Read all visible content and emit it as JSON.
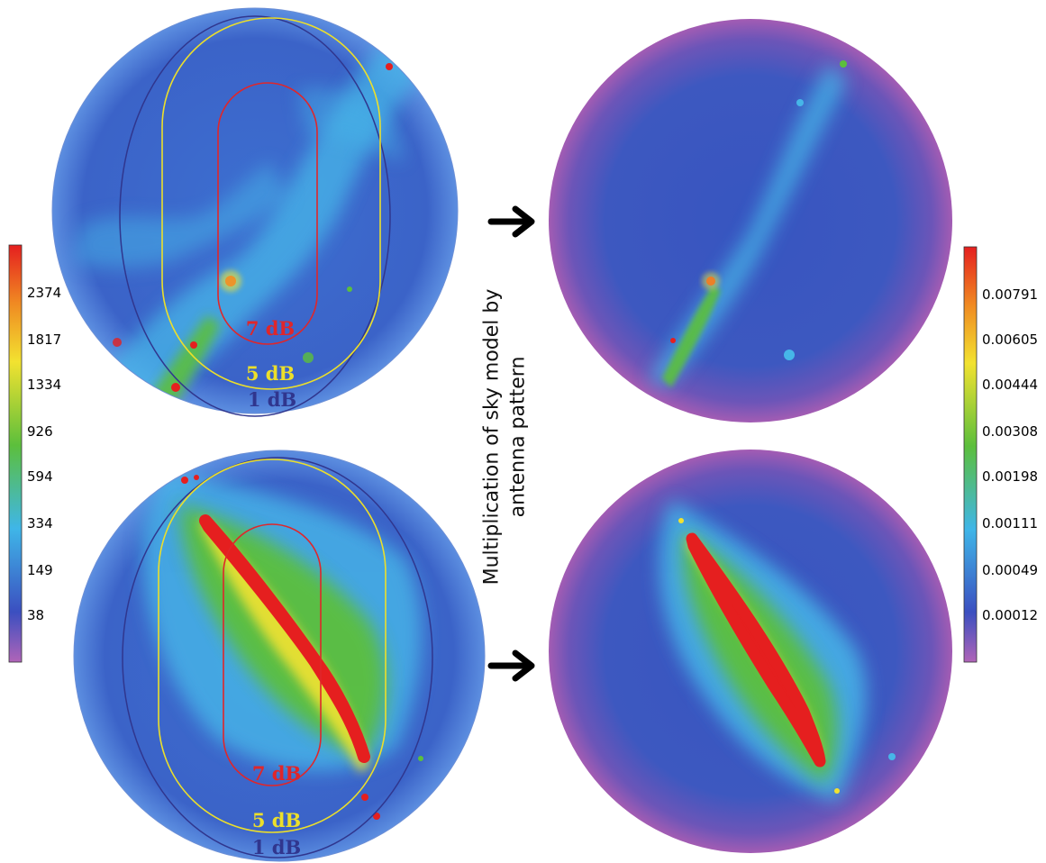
{
  "colors": {
    "sky_background": "#3a5fc4",
    "diffuse_emission": "#3fb6e8",
    "galactic_plane_mid": "#5cbf3c",
    "galactic_plane_core": "#ee2a22",
    "yellow_band": "#f2e230",
    "edge_magenta": "#a05bb3",
    "contour_7dB": "#e0262a",
    "contour_5dB": "#ecdf2a",
    "contour_1dB": "#30368e",
    "arrow": "#000000"
  },
  "left_colorbar": {
    "ticks": [
      "2374",
      "1817",
      "1334",
      "926",
      "594",
      "334",
      "149",
      "38"
    ]
  },
  "right_colorbar": {
    "ticks": [
      "0.00791",
      "0.00605",
      "0.00444",
      "0.00308",
      "0.00198",
      "0.00111",
      "0.00049",
      "0.00012"
    ]
  },
  "contour_labels": {
    "top": [
      "7 dB",
      "5 dB",
      "1 dB"
    ],
    "bottom": [
      "7 dB",
      "5 dB",
      "1 dB"
    ]
  },
  "center_text": [
    "Multiplication of sky model by",
    "antenna pattern"
  ],
  "icons": [
    "arrow-right-icon",
    "arrow-right-icon"
  ]
}
